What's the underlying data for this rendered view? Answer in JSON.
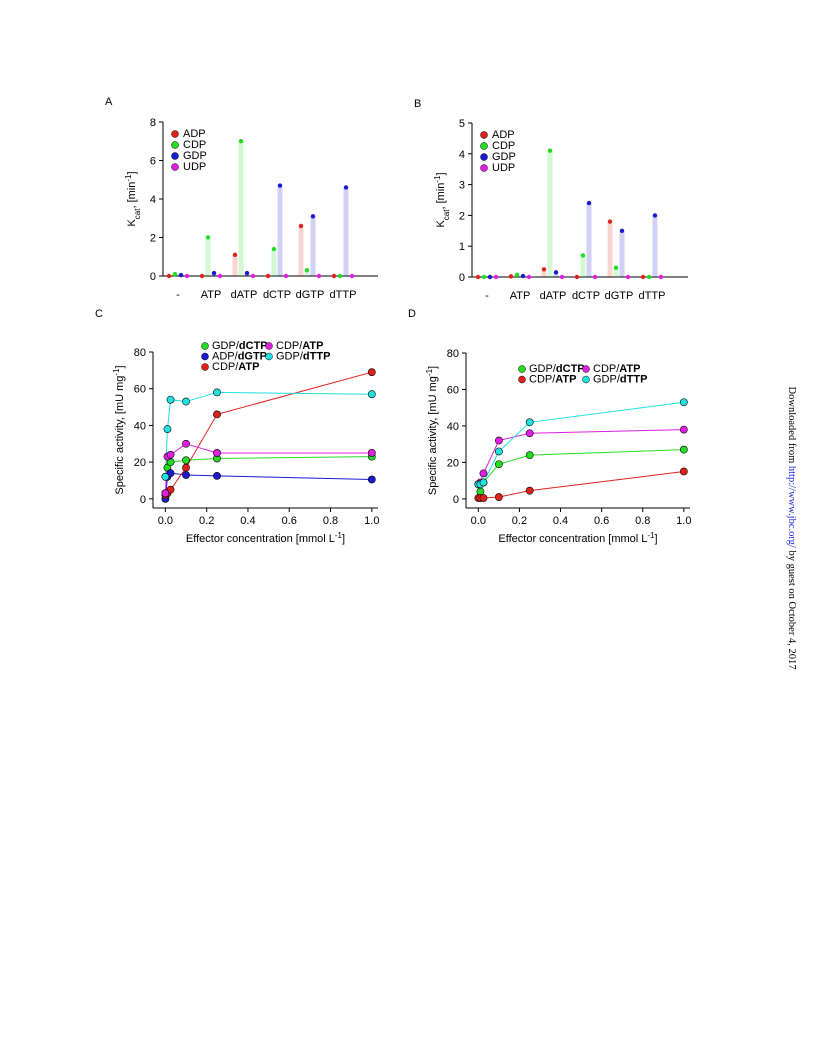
{
  "chart_data": [
    {
      "type": "bar",
      "panel": "A",
      "ylabel": [
        "K",
        "cat",
        ", [min",
        "-1",
        "]"
      ],
      "categories": [
        "-",
        "ATP",
        "dATP",
        "dCTP",
        "dGTP",
        "dTTP"
      ],
      "series": [
        {
          "name": "ADP",
          "color": "#e0221d",
          "values": [
            0,
            0,
            1.1,
            0,
            2.6,
            0
          ]
        },
        {
          "name": "CDP",
          "color": "#22dd22",
          "values": [
            0.1,
            2.0,
            7.0,
            1.4,
            0.3,
            0
          ]
        },
        {
          "name": "GDP",
          "color": "#1a1ad0",
          "values": [
            0.05,
            0.15,
            0.15,
            4.7,
            3.1,
            4.6
          ]
        },
        {
          "name": "UDP",
          "color": "#e020e0",
          "values": [
            0,
            0,
            0,
            0,
            0,
            0
          ]
        }
      ],
      "ylim": [
        0,
        8
      ],
      "yticks": [
        0,
        2,
        4,
        6,
        8
      ],
      "legend": "upper left"
    },
    {
      "type": "bar",
      "panel": "B",
      "ylabel": [
        "K",
        "cat",
        ", [min",
        "-1",
        "]"
      ],
      "categories": [
        "-",
        "ATP",
        "dATP",
        "dCTP",
        "dGTP",
        "dTTP"
      ],
      "series": [
        {
          "name": "ADP",
          "color": "#e0221d",
          "values": [
            0,
            0.02,
            0.25,
            0,
            1.8,
            0
          ]
        },
        {
          "name": "CDP",
          "color": "#22dd22",
          "values": [
            0,
            0.07,
            4.1,
            0.7,
            0.3,
            0
          ]
        },
        {
          "name": "GDP",
          "color": "#1a1ad0",
          "values": [
            0,
            0.03,
            0.15,
            2.4,
            1.5,
            2.0
          ]
        },
        {
          "name": "UDP",
          "color": "#e020e0",
          "values": [
            0,
            0,
            0,
            0,
            0,
            0
          ]
        }
      ],
      "ylim": [
        0,
        5
      ],
      "yticks": [
        0,
        1,
        2,
        3,
        4,
        5
      ],
      "legend": "upper left"
    },
    {
      "type": "line",
      "panel": "C",
      "ylabel": [
        "Specific activity, [mU mg",
        "-1",
        "]"
      ],
      "xlabel": [
        "Effector concentration [mmol L",
        "-1",
        "]"
      ],
      "x": [
        0,
        0.01,
        0.025,
        0.1,
        0.25,
        1.0
      ],
      "series": [
        {
          "name": "GDP/dCTP",
          "color": "#22dd22",
          "values": [
            3,
            17,
            20,
            21,
            22,
            23
          ]
        },
        {
          "name": "ADP/dGTP",
          "color": "#1a1ad0",
          "values": [
            0,
            12,
            14,
            13,
            12.5,
            10.5
          ]
        },
        {
          "name": "CDP/ATP",
          "color": "#e0221d",
          "values": [
            2,
            3,
            5,
            17,
            46,
            69
          ]
        },
        {
          "name": "CDP/ATP",
          "color": "#e020e0",
          "values": [
            3,
            23,
            24,
            30,
            25,
            25
          ]
        },
        {
          "name": "GDP/dTTP",
          "color": "#20e0e0",
          "values": [
            12,
            38,
            54,
            53,
            58,
            57
          ]
        }
      ],
      "xlim": [
        -0.06,
        1.03
      ],
      "ylim": [
        -5,
        80
      ],
      "xticks": [
        {
          "value": 0,
          "label": "0.0"
        },
        {
          "value": 0.2,
          "label": "0.2"
        },
        {
          "value": 0.4,
          "label": "0.4"
        },
        {
          "value": 0.6,
          "label": "0.6"
        },
        {
          "value": 0.8,
          "label": "0.8"
        },
        {
          "value": 1,
          "label": "1.0"
        }
      ],
      "yticks": [
        0,
        20,
        40,
        60,
        80
      ],
      "legend": "upper center"
    },
    {
      "type": "line",
      "panel": "D",
      "ylabel": [
        "Specific activity, [mU mg",
        "-1",
        "]"
      ],
      "xlabel": [
        "Effector concentration [mmol L",
        "-1",
        "]"
      ],
      "x": [
        0,
        0.01,
        0.025,
        0.1,
        0.25,
        1.0
      ],
      "series": [
        {
          "name": "GDP/dCTP",
          "color": "#22dd22",
          "values": [
            8,
            4,
            9,
            19,
            24,
            27
          ]
        },
        {
          "name": "CDP/ATP",
          "color": "#e0221d",
          "values": [
            0.5,
            0.5,
            0.5,
            1,
            4.5,
            15
          ]
        },
        {
          "name": "CDP/ATP",
          "color": "#e020e0",
          "values": [
            8,
            9,
            14,
            32,
            36,
            38
          ]
        },
        {
          "name": "GDP/dTTP",
          "color": "#20e0e0",
          "values": [
            8,
            8,
            9,
            26,
            42,
            53
          ]
        }
      ],
      "xlim": [
        -0.06,
        1.03
      ],
      "ylim": [
        -5,
        80
      ],
      "xticks": [
        {
          "value": 0,
          "label": "0.0"
        },
        {
          "value": 0.2,
          "label": "0.2"
        },
        {
          "value": 0.4,
          "label": "0.4"
        },
        {
          "value": 0.6,
          "label": "0.6"
        },
        {
          "value": 0.8,
          "label": "0.8"
        },
        {
          "value": 1,
          "label": "1.0"
        }
      ],
      "yticks": [
        0,
        20,
        40,
        60,
        80
      ],
      "legend": "upper center"
    }
  ],
  "watermark": [
    "Downloaded from ",
    "http://www.jbc.org/",
    " by guest on October 4, 2017"
  ]
}
